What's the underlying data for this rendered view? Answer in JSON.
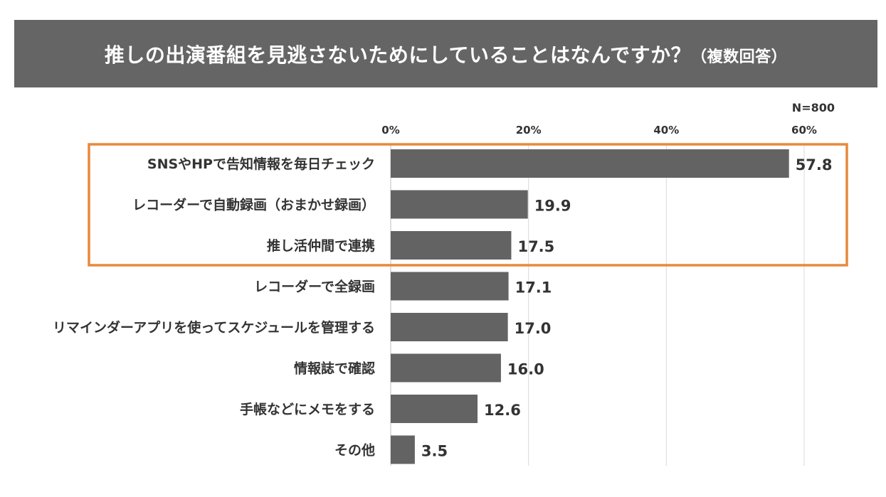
{
  "title": {
    "main": "推しの出演番組を見逃さないためにしていることはなんですか？",
    "sub": "（複数回答）"
  },
  "sample_note": "N=800",
  "colors": {
    "header_bg": "#656565",
    "bar": "#636363",
    "highlight_border": "#e8893c",
    "text": "#333333"
  },
  "chart_data": {
    "type": "bar",
    "orientation": "horizontal",
    "categories": [
      "SNSやHPで告知情報を毎日チェック",
      "レコーダーで自動録画（おまかせ録画）",
      "推し活仲間で連携",
      "レコーダーで全録画",
      "リマインダーアプリを使ってスケジュールを管理する",
      "情報誌で確認",
      "手帳などにメモをする",
      "その他"
    ],
    "values": [
      57.8,
      19.9,
      17.5,
      17.1,
      17.0,
      16.0,
      12.6,
      3.5
    ],
    "value_labels": [
      "57.8",
      "19.9",
      "17.5",
      "17.1",
      "17.0",
      "16.0",
      "12.6",
      "3.5"
    ],
    "xlim": [
      0,
      60
    ],
    "x_ticks": [
      0,
      20,
      40,
      60
    ],
    "x_tick_labels": [
      "0%",
      "20%",
      "40%",
      "60%"
    ],
    "x_axis_position": "top",
    "grid": true,
    "highlighted_categories": [
      0,
      1,
      2
    ]
  }
}
